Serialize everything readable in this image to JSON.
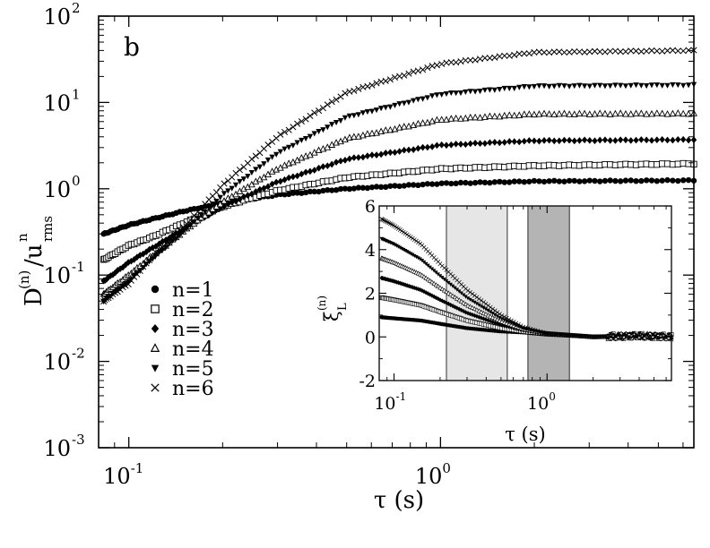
{
  "chart_data": [
    {
      "type": "scatter",
      "panel_label": "b",
      "xscale": "log",
      "yscale": "log",
      "xlim": [
        0.08,
        6.5
      ],
      "ylim": [
        0.001,
        100
      ],
      "xlabel": "τ (s)",
      "ylabel": {
        "main": "D",
        "super1": "(n)",
        "slash": "/u",
        "super2": "n",
        "sub": "rms"
      },
      "x_ticks": [
        {
          "value": 0.1,
          "base": "10",
          "exp": "-1"
        },
        {
          "value": 1,
          "base": "10",
          "exp": "0"
        }
      ],
      "y_ticks": [
        {
          "value": 0.001,
          "base": "10",
          "exp": "-3"
        },
        {
          "value": 0.01,
          "base": "10",
          "exp": "-2"
        },
        {
          "value": 0.1,
          "base": "10",
          "exp": "-1"
        },
        {
          "value": 1,
          "base": "10",
          "exp": "0"
        },
        {
          "value": 10,
          "base": "10",
          "exp": "1"
        },
        {
          "value": 100,
          "base": "10",
          "exp": "2"
        }
      ],
      "legend_position": "left-middle",
      "series": [
        {
          "name": "n=1",
          "marker": "circle-filled",
          "x": [
            0.083,
            0.1,
            0.12,
            0.15,
            0.2,
            0.3,
            0.5,
            1.0,
            2.0,
            6.5
          ],
          "y": [
            0.3,
            0.38,
            0.45,
            0.55,
            0.68,
            0.85,
            1.0,
            1.15,
            1.22,
            1.25
          ]
        },
        {
          "name": "n=2",
          "marker": "square-open",
          "x": [
            0.083,
            0.1,
            0.12,
            0.15,
            0.2,
            0.3,
            0.5,
            1.0,
            2.0,
            6.5
          ],
          "y": [
            0.15,
            0.22,
            0.28,
            0.4,
            0.62,
            0.95,
            1.35,
            1.7,
            1.85,
            1.95
          ]
        },
        {
          "name": "n=3",
          "marker": "diamond-filled",
          "x": [
            0.083,
            0.1,
            0.12,
            0.15,
            0.2,
            0.3,
            0.5,
            1.0,
            2.0,
            6.5
          ],
          "y": [
            0.085,
            0.14,
            0.21,
            0.34,
            0.62,
            1.2,
            2.2,
            3.2,
            3.6,
            3.7
          ]
        },
        {
          "name": "n=4",
          "marker": "triangle-up-open",
          "x": [
            0.083,
            0.1,
            0.12,
            0.15,
            0.2,
            0.3,
            0.5,
            1.0,
            2.0,
            6.5
          ],
          "y": [
            0.06,
            0.1,
            0.17,
            0.32,
            0.7,
            1.7,
            3.8,
            6.3,
            7.3,
            7.4
          ]
        },
        {
          "name": "n=5",
          "marker": "triangle-down-filled",
          "x": [
            0.083,
            0.1,
            0.12,
            0.15,
            0.2,
            0.3,
            0.5,
            1.0,
            2.0,
            6.5
          ],
          "y": [
            0.05,
            0.085,
            0.16,
            0.32,
            0.85,
            2.6,
            6.8,
            12.5,
            15.5,
            16.0
          ]
        },
        {
          "name": "n=6",
          "marker": "x-cross",
          "x": [
            0.083,
            0.1,
            0.12,
            0.15,
            0.2,
            0.3,
            0.5,
            1.0,
            2.0,
            6.5
          ],
          "y": [
            0.05,
            0.08,
            0.17,
            0.36,
            1.1,
            4.0,
            13.0,
            28.0,
            38.0,
            40.0
          ]
        }
      ]
    },
    {
      "type": "scatter",
      "role": "inset",
      "xscale": "log",
      "yscale": "linear",
      "xlim": [
        0.08,
        6.5
      ],
      "ylim": [
        -2,
        6
      ],
      "xlabel": "τ (s)",
      "ylabel": {
        "main": "ξ",
        "super": "(n)",
        "sub": "L"
      },
      "x_ticks": [
        {
          "value": 0.1,
          "base": "10",
          "exp": "-1"
        },
        {
          "value": 1,
          "base": "10",
          "exp": "0"
        }
      ],
      "y_ticks": [
        -2,
        0,
        2,
        4,
        6
      ],
      "shaded_bands": [
        {
          "x_range": [
            0.22,
            0.55
          ],
          "shade": "light"
        },
        {
          "x_range": [
            0.75,
            1.4
          ],
          "shade": "dark"
        }
      ],
      "series": [
        {
          "name": "n=1",
          "marker": "circle-filled",
          "x": [
            0.083,
            0.1,
            0.15,
            0.2,
            0.3,
            0.5,
            0.7,
            1.0,
            2.0,
            4.0,
            6.5
          ],
          "y": [
            0.9,
            0.85,
            0.75,
            0.6,
            0.4,
            0.25,
            0.2,
            0.1,
            0.0,
            0.05,
            0.0
          ]
        },
        {
          "name": "n=2",
          "marker": "square-open",
          "x": [
            0.083,
            0.1,
            0.15,
            0.2,
            0.3,
            0.5,
            0.7,
            1.0,
            2.0,
            4.0,
            6.5
          ],
          "y": [
            1.8,
            1.7,
            1.45,
            1.15,
            0.75,
            0.4,
            0.25,
            0.15,
            0.0,
            0.05,
            0.0
          ]
        },
        {
          "name": "n=3",
          "marker": "diamond-filled",
          "x": [
            0.083,
            0.1,
            0.15,
            0.2,
            0.3,
            0.5,
            0.7,
            1.0,
            2.0,
            4.0,
            6.5
          ],
          "y": [
            2.7,
            2.55,
            2.15,
            1.7,
            1.1,
            0.55,
            0.3,
            0.15,
            0.0,
            0.05,
            0.0
          ]
        },
        {
          "name": "n=4",
          "marker": "triangle-up-open",
          "x": [
            0.083,
            0.1,
            0.15,
            0.2,
            0.3,
            0.5,
            0.7,
            1.0,
            2.0,
            4.0,
            6.5
          ],
          "y": [
            3.6,
            3.4,
            2.85,
            2.25,
            1.45,
            0.7,
            0.35,
            0.15,
            0.0,
            0.05,
            0.0
          ]
        },
        {
          "name": "n=5",
          "marker": "triangle-down-filled",
          "x": [
            0.083,
            0.1,
            0.15,
            0.2,
            0.3,
            0.5,
            0.7,
            1.0,
            2.0,
            4.0,
            6.5
          ],
          "y": [
            4.5,
            4.25,
            3.55,
            2.8,
            1.8,
            0.85,
            0.4,
            0.15,
            0.0,
            0.05,
            0.0
          ]
        },
        {
          "name": "n=6",
          "marker": "x-cross",
          "x": [
            0.083,
            0.1,
            0.15,
            0.2,
            0.3,
            0.5,
            0.7,
            1.0,
            2.0,
            4.0,
            6.5
          ],
          "y": [
            5.4,
            5.1,
            4.25,
            3.35,
            2.15,
            1.0,
            0.45,
            0.15,
            0.0,
            0.05,
            0.0
          ]
        }
      ]
    }
  ]
}
